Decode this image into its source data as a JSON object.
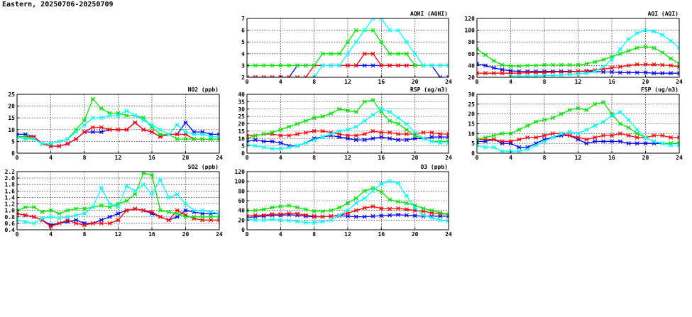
{
  "header": {
    "title": "Eastern, 20250706-20250709"
  },
  "colors": {
    "blue": "#0000ff",
    "red": "#ff0000",
    "green": "#00e600",
    "cyan": "#00ffff",
    "frame": "#000000",
    "grid": "#000000"
  },
  "chart_data": [
    {
      "id": "aqhi",
      "type": "line",
      "title": "AQHI (AQHI)",
      "xlabel": "",
      "ylabel": "",
      "xlim": [
        0,
        24
      ],
      "ylim": [
        2,
        7
      ],
      "xticks": [
        0,
        4,
        8,
        12,
        16,
        20,
        24
      ],
      "yticks": [
        2,
        3,
        4,
        5,
        6,
        7
      ],
      "grid": true,
      "series": [
        {
          "color": "blue",
          "values": [
            2,
            2,
            2,
            2,
            2,
            2,
            3,
            3,
            3,
            3,
            3,
            3,
            3,
            3,
            3,
            3,
            3,
            3,
            3,
            3,
            3,
            3,
            3,
            2,
            2
          ]
        },
        {
          "color": "red",
          "values": [
            2,
            2,
            2,
            2,
            2,
            2,
            2,
            2,
            3,
            3,
            3,
            3,
            3,
            3,
            4,
            4,
            3,
            3,
            3,
            3,
            3,
            3,
            3,
            3,
            3
          ]
        },
        {
          "color": "green",
          "values": [
            3,
            3,
            3,
            3,
            3,
            3,
            3,
            3,
            3,
            4,
            4,
            4,
            5,
            6,
            6,
            6,
            5,
            4,
            4,
            4,
            3,
            3,
            3,
            3,
            3
          ]
        },
        {
          "color": "cyan",
          "values": [
            null,
            null,
            null,
            null,
            null,
            null,
            null,
            null,
            2,
            3,
            3,
            3,
            4,
            5,
            6,
            7,
            7,
            6,
            6,
            5,
            4,
            3,
            3,
            3,
            3
          ]
        }
      ]
    },
    {
      "id": "aqi",
      "type": "line",
      "title": "AQI (AQI)",
      "xlabel": "",
      "ylabel": "",
      "xlim": [
        0,
        24
      ],
      "ylim": [
        20,
        120
      ],
      "xticks": [
        0,
        4,
        8,
        12,
        16,
        20,
        24
      ],
      "yticks": [
        20,
        40,
        60,
        80,
        100,
        120
      ],
      "grid": true,
      "series": [
        {
          "color": "blue",
          "values": [
            43,
            40,
            36,
            33,
            31,
            30,
            30,
            30,
            30,
            30,
            30,
            30,
            30,
            30,
            30,
            29,
            29,
            28,
            28,
            28,
            28,
            27,
            27,
            27,
            27
          ]
        },
        {
          "color": "red",
          "values": [
            27,
            27,
            27,
            27,
            27,
            27,
            28,
            28,
            28,
            29,
            29,
            29,
            30,
            31,
            32,
            34,
            36,
            38,
            40,
            42,
            42,
            42,
            41,
            40,
            38
          ]
        },
        {
          "color": "green",
          "values": [
            68,
            58,
            48,
            41,
            39,
            39,
            40,
            40,
            41,
            41,
            41,
            41,
            41,
            43,
            46,
            50,
            55,
            60,
            65,
            70,
            72,
            70,
            62,
            52,
            43
          ]
        },
        {
          "color": "cyan",
          "values": [
            null,
            null,
            null,
            null,
            22,
            22,
            22,
            22,
            23,
            23,
            24,
            25,
            26,
            27,
            30,
            38,
            50,
            68,
            85,
            95,
            100,
            98,
            92,
            82,
            70
          ]
        }
      ]
    },
    {
      "id": "no2",
      "type": "line",
      "title": "NO2 (ppb)",
      "xlabel": "",
      "ylabel": "",
      "xlim": [
        0,
        24
      ],
      "ylim": [
        0,
        25
      ],
      "xticks": [
        0,
        4,
        8,
        12,
        16,
        20,
        24
      ],
      "yticks": [
        0,
        5,
        10,
        15,
        20,
        25
      ],
      "grid": true,
      "series": [
        {
          "color": "blue",
          "values": [
            8,
            8,
            7,
            4,
            3,
            3,
            4,
            6,
            9,
            9,
            9,
            10,
            10,
            10,
            13,
            10,
            9,
            7,
            8,
            8,
            13,
            9,
            9,
            8,
            8
          ]
        },
        {
          "color": "red",
          "values": [
            7,
            7,
            7,
            4,
            3,
            3,
            4,
            6,
            9,
            11,
            11,
            10,
            10,
            10,
            13,
            10,
            9,
            7,
            8,
            8,
            8,
            6,
            6,
            6,
            6
          ]
        },
        {
          "color": "green",
          "values": [
            7,
            7,
            6,
            4,
            4,
            5,
            6,
            10,
            14,
            23,
            19,
            17,
            17,
            16,
            16,
            15,
            11,
            8,
            8,
            6,
            6,
            6,
            6,
            6,
            6
          ]
        },
        {
          "color": "cyan",
          "values": [
            7,
            6,
            6,
            4,
            4,
            5,
            6,
            9,
            12,
            15,
            15,
            16,
            16,
            18,
            16,
            14,
            12,
            10,
            8,
            12,
            9,
            8,
            8,
            7,
            7
          ]
        }
      ]
    },
    {
      "id": "rsp",
      "type": "line",
      "title": "RSP (ug/m3)",
      "xlabel": "",
      "ylabel": "",
      "xlim": [
        0,
        24
      ],
      "ylim": [
        0,
        40
      ],
      "xticks": [
        0,
        4,
        8,
        12,
        16,
        20,
        24
      ],
      "yticks": [
        0,
        5,
        10,
        15,
        20,
        25,
        30,
        35,
        40
      ],
      "grid": true,
      "series": [
        {
          "color": "blue",
          "values": [
            8,
            9,
            8,
            8,
            7,
            5,
            5,
            7,
            10,
            11,
            12,
            11,
            10,
            9,
            9,
            10,
            11,
            10,
            9,
            9,
            10,
            10,
            11,
            11,
            11
          ]
        },
        {
          "color": "red",
          "values": [
            12,
            12,
            13,
            13,
            12,
            12,
            13,
            14,
            15,
            15,
            14,
            13,
            12,
            12,
            13,
            15,
            14,
            14,
            13,
            13,
            13,
            14,
            14,
            13,
            13
          ]
        },
        {
          "color": "green",
          "values": [
            10,
            12,
            13,
            14,
            16,
            18,
            20,
            22,
            24,
            25,
            27,
            30,
            29,
            28,
            35,
            36,
            28,
            22,
            20,
            16,
            12,
            10,
            8,
            8,
            8
          ]
        },
        {
          "color": "cyan",
          "values": [
            6,
            5,
            4,
            3,
            3,
            4,
            5,
            7,
            9,
            11,
            13,
            15,
            16,
            18,
            22,
            26,
            30,
            28,
            24,
            20,
            14,
            10,
            8,
            7,
            7
          ]
        }
      ]
    },
    {
      "id": "fsp",
      "type": "line",
      "title": "FSP (ug/m3)",
      "xlabel": "",
      "ylabel": "",
      "xlim": [
        0,
        24
      ],
      "ylim": [
        0,
        30
      ],
      "xticks": [
        0,
        4,
        8,
        12,
        16,
        20,
        24
      ],
      "yticks": [
        0,
        5,
        10,
        15,
        20,
        25,
        30
      ],
      "grid": true,
      "series": [
        {
          "color": "blue",
          "values": [
            6,
            6,
            7,
            5,
            5,
            3,
            3,
            5,
            7,
            8,
            9,
            9,
            7,
            5,
            6,
            6,
            6,
            6,
            5,
            5,
            5,
            5,
            5,
            5,
            5
          ]
        },
        {
          "color": "red",
          "values": [
            7,
            7,
            7,
            6,
            6,
            7,
            8,
            8,
            9,
            10,
            10,
            9,
            8,
            7,
            8,
            9,
            9,
            10,
            9,
            8,
            8,
            9,
            9,
            8,
            8
          ]
        },
        {
          "color": "green",
          "values": [
            7,
            8,
            9,
            10,
            10,
            12,
            14,
            16,
            17,
            18,
            20,
            22,
            23,
            22,
            25,
            26,
            20,
            15,
            13,
            10,
            8,
            6,
            5,
            5,
            5
          ]
        },
        {
          "color": "cyan",
          "values": [
            4,
            3,
            3,
            1,
            1,
            1,
            2,
            4,
            6,
            8,
            10,
            11,
            10,
            12,
            14,
            16,
            19,
            21,
            17,
            12,
            8,
            6,
            5,
            4,
            4
          ]
        }
      ]
    },
    {
      "id": "so2",
      "type": "line",
      "title": "SO2 (ppb)",
      "xlabel": "",
      "ylabel": "",
      "xlim": [
        0,
        24
      ],
      "ylim": [
        0.4,
        2.2
      ],
      "xticks": [
        0,
        4,
        8,
        12,
        16,
        20,
        24
      ],
      "yticks": [
        0.4,
        0.6,
        0.8,
        1.0,
        1.2,
        1.4,
        1.6,
        1.8,
        2.0,
        2.2
      ],
      "grid": true,
      "series": [
        {
          "color": "blue",
          "values": [
            0.9,
            0.85,
            0.8,
            0.7,
            0.55,
            0.6,
            0.65,
            0.7,
            0.6,
            0.6,
            0.7,
            0.8,
            0.9,
            1.0,
            1.05,
            1.0,
            0.9,
            0.8,
            0.7,
            0.8,
            1.0,
            0.95,
            0.9,
            0.9,
            0.9
          ]
        },
        {
          "color": "red",
          "values": [
            0.9,
            0.85,
            0.8,
            0.7,
            0.5,
            0.6,
            0.7,
            0.6,
            0.55,
            0.6,
            0.6,
            0.6,
            0.7,
            1.0,
            1.05,
            1.0,
            0.95,
            0.8,
            0.7,
            1.0,
            0.85,
            0.75,
            0.7,
            0.7,
            0.7
          ]
        },
        {
          "color": "green",
          "values": [
            1.0,
            1.1,
            1.1,
            0.95,
            1.0,
            0.9,
            1.0,
            1.05,
            1.05,
            1.1,
            1.15,
            1.1,
            1.2,
            1.3,
            1.5,
            2.15,
            2.1,
            1.0,
            0.95,
            0.9,
            0.8,
            0.8,
            0.8,
            0.8,
            0.8
          ]
        },
        {
          "color": "cyan",
          "values": [
            0.7,
            0.65,
            0.6,
            0.75,
            0.8,
            0.75,
            0.8,
            0.85,
            0.9,
            1.1,
            1.7,
            1.2,
            1.1,
            1.75,
            1.6,
            1.8,
            1.5,
            1.95,
            1.4,
            1.5,
            1.2,
            1.0,
            1.0,
            0.95,
            0.9
          ]
        }
      ]
    },
    {
      "id": "o3",
      "type": "line",
      "title": "O3 (ppb)",
      "xlabel": "",
      "ylabel": "",
      "xlim": [
        0,
        24
      ],
      "ylim": [
        0,
        120
      ],
      "xticks": [
        0,
        4,
        8,
        12,
        16,
        20,
        24
      ],
      "yticks": [
        0,
        20,
        40,
        60,
        80,
        100,
        120
      ],
      "grid": true,
      "series": [
        {
          "color": "blue",
          "values": [
            25,
            27,
            28,
            30,
            30,
            31,
            30,
            28,
            27,
            27,
            28,
            29,
            28,
            27,
            27,
            28,
            29,
            30,
            31,
            30,
            29,
            28,
            28,
            28,
            28
          ]
        },
        {
          "color": "red",
          "values": [
            28,
            30,
            30,
            32,
            32,
            34,
            33,
            30,
            28,
            27,
            28,
            30,
            34,
            40,
            45,
            48,
            44,
            43,
            44,
            42,
            40,
            38,
            35,
            33,
            32
          ]
        },
        {
          "color": "green",
          "values": [
            40,
            40,
            42,
            46,
            48,
            50,
            46,
            42,
            38,
            38,
            40,
            46,
            55,
            65,
            80,
            86,
            78,
            62,
            58,
            55,
            50,
            44,
            40,
            35,
            32
          ]
        },
        {
          "color": "cyan",
          "values": [
            22,
            20,
            20,
            21,
            20,
            19,
            17,
            15,
            15,
            17,
            20,
            30,
            40,
            55,
            65,
            80,
            95,
            100,
            96,
            70,
            45,
            30,
            25,
            20,
            18
          ]
        }
      ]
    }
  ]
}
